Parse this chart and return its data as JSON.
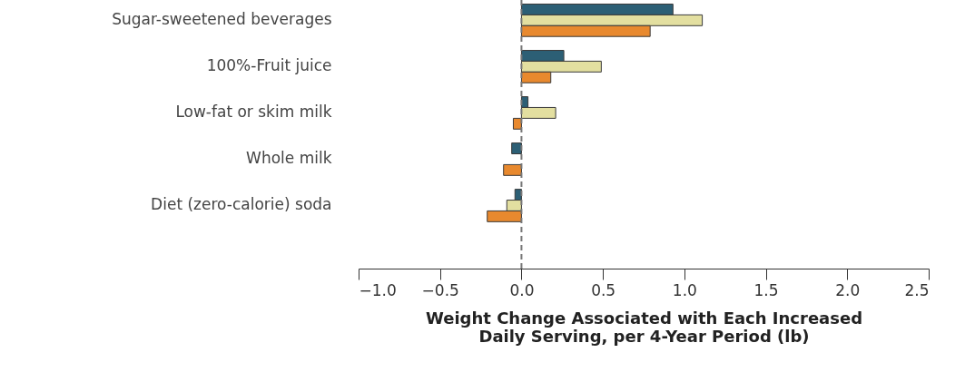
{
  "chart_data": {
    "type": "bar",
    "orientation": "horizontal",
    "xlabel": "Weight Change Associated with Each Increased Daily Serving, per 4-Year Period (lb)",
    "categories": [
      "Sugar-sweetened beverages",
      "100%-Fruit juice",
      "Low-fat or skim milk",
      "Whole milk",
      "Diet (zero-calorie) soda"
    ],
    "series": [
      {
        "color": "#2c5f75",
        "values": [
          0.93,
          0.26,
          0.04,
          -0.06,
          -0.04
        ]
      },
      {
        "color": "#e3dfa0",
        "values": [
          1.11,
          0.49,
          0.21,
          null,
          -0.09
        ]
      },
      {
        "color": "#e8892e",
        "values": [
          0.79,
          0.18,
          -0.05,
          -0.11,
          -0.21
        ]
      }
    ],
    "xlim": [
      -1.0,
      2.5
    ],
    "xticks": [
      {
        "value": -1.0,
        "label": "−1.0"
      },
      {
        "value": -0.5,
        "label": "−0.5"
      },
      {
        "value": 0,
        "label": "0.0"
      },
      {
        "value": 0.5,
        "label": "0.5"
      },
      {
        "value": 1,
        "label": "1.0"
      },
      {
        "value": 1.5,
        "label": "1.5"
      },
      {
        "value": 2,
        "label": "2.0"
      },
      {
        "value": 2.5,
        "label": "2.5"
      }
    ],
    "ref_lines": [
      {
        "axis": "x",
        "value": 0,
        "color": "#777777",
        "line_style": "dashed"
      }
    ],
    "grid": false
  }
}
